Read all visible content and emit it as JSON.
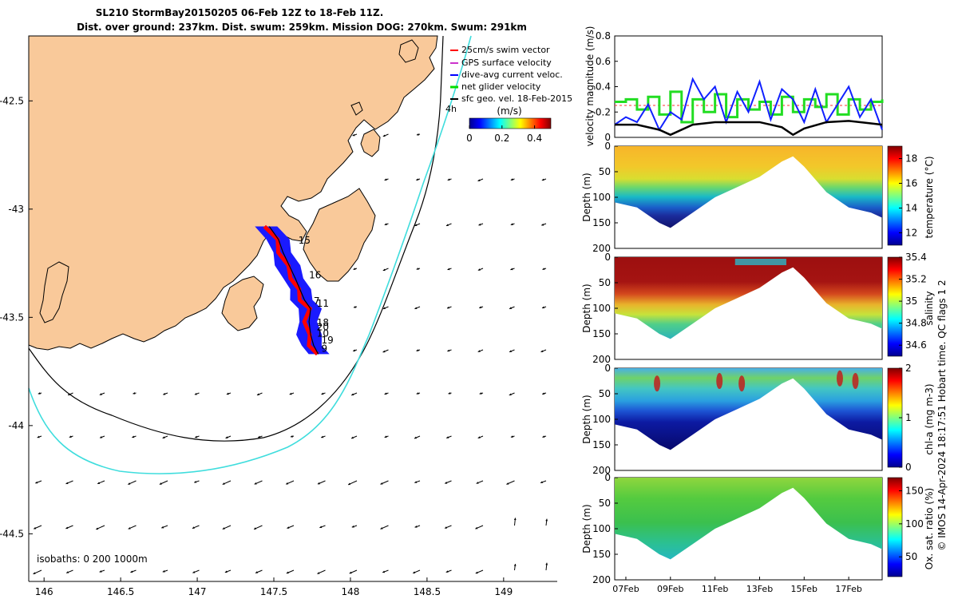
{
  "title": {
    "line1": "SL210 StormBay20150205 06-Feb 12Z to 18-Feb 11Z.",
    "line2": "Dist. over ground: 237km. Dist. swum: 259km. Mission DOG: 270km. Swum: 291km"
  },
  "credit": "© IMOS 14-Apr-2024 18:17:51 Hobart time. QC flags 1  2",
  "colors": {
    "land": "#f9c99a",
    "coast": "#000000",
    "isobath_1000": "#3fdddd",
    "isobath_200": "#000000",
    "swim_vector": "#ff0000",
    "gps_velocity": "#cc33cc",
    "dive_avg": "#0000ff",
    "net_glider": "#00dd00",
    "geo_vel": "#000000"
  },
  "chart_data": [
    {
      "type": "map",
      "x_ticks": [
        "146",
        "146.5",
        "147",
        "147.5",
        "148",
        "148.5",
        "149"
      ],
      "xlim": [
        145.9,
        149.35
      ],
      "y_ticks": [
        "-42.5",
        "-43",
        "-43.5",
        "-44",
        "-44.5"
      ],
      "ylim": [
        -44.72,
        -42.2
      ],
      "isobaths_label": "isobaths: 0   200  1000m",
      "legend": [
        "25cm/s swim vector",
        "GPS surface velocity",
        "dive-avg current veloc.",
        "net glider velocity",
        "sfc geo. vel. 18-Feb-2015"
      ],
      "legend_extra": "4h",
      "colorbar": {
        "label": "(m/s)",
        "ticks": [
          "0",
          "0.2",
          "0.4"
        ],
        "range": [
          0,
          0.5
        ]
      },
      "day_labels": [
        {
          "label": "15",
          "lon": 147.66,
          "lat": -43.16
        },
        {
          "label": "16",
          "lon": 147.73,
          "lat": -43.32
        },
        {
          "label": "11",
          "lon": 147.78,
          "lat": -43.45
        },
        {
          "label": "7",
          "lon": 147.76,
          "lat": -43.44
        },
        {
          "label": "18",
          "lon": 147.78,
          "lat": -43.54
        },
        {
          "label": "20",
          "lon": 147.78,
          "lat": -43.56
        },
        {
          "label": "10",
          "lon": 147.78,
          "lat": -43.59
        },
        {
          "label": "19",
          "lon": 147.81,
          "lat": -43.62
        },
        {
          "label": "9",
          "lon": 147.81,
          "lat": -43.66
        }
      ],
      "glider_track": [
        [
          147.47,
          -43.08
        ],
        [
          147.53,
          -43.14
        ],
        [
          147.56,
          -43.2
        ],
        [
          147.6,
          -43.26
        ],
        [
          147.64,
          -43.32
        ],
        [
          147.67,
          -43.37
        ],
        [
          147.7,
          -43.42
        ],
        [
          147.74,
          -43.46
        ],
        [
          147.73,
          -43.52
        ],
        [
          147.74,
          -43.58
        ],
        [
          147.76,
          -43.63
        ],
        [
          147.79,
          -43.67
        ]
      ]
    },
    {
      "type": "line",
      "ylabel": "velocity magnitude (m/s)",
      "ylim": [
        0,
        0.8
      ],
      "y_ticks": [
        "0",
        "0.2",
        "0.4",
        "0.6",
        "0.8"
      ],
      "x_days": [
        6.5,
        18.5
      ],
      "series": [
        {
          "color": "green",
          "x": [
            6.5,
            7.0,
            7.5,
            8.0,
            8.5,
            9.0,
            9.5,
            10.0,
            10.5,
            11.0,
            11.5,
            12.0,
            12.5,
            13.0,
            13.5,
            14.0,
            14.5,
            15.0,
            15.5,
            16.0,
            16.5,
            17.0,
            17.5,
            18.0,
            18.5
          ],
          "values": [
            0.28,
            0.3,
            0.22,
            0.32,
            0.18,
            0.36,
            0.12,
            0.3,
            0.2,
            0.34,
            0.16,
            0.3,
            0.22,
            0.28,
            0.18,
            0.32,
            0.2,
            0.3,
            0.24,
            0.34,
            0.18,
            0.3,
            0.22,
            0.28,
            0.3
          ]
        },
        {
          "color": "blue",
          "x": [
            6.5,
            7.0,
            7.5,
            8.0,
            8.5,
            9.0,
            9.5,
            10.0,
            10.5,
            11.0,
            11.5,
            12.0,
            12.5,
            13.0,
            13.5,
            14.0,
            14.5,
            15.0,
            15.5,
            16.0,
            16.5,
            17.0,
            17.5,
            18.0,
            18.5
          ],
          "values": [
            0.1,
            0.16,
            0.12,
            0.26,
            0.06,
            0.2,
            0.14,
            0.46,
            0.3,
            0.4,
            0.12,
            0.36,
            0.2,
            0.44,
            0.14,
            0.38,
            0.3,
            0.12,
            0.38,
            0.12,
            0.26,
            0.4,
            0.16,
            0.3,
            0.06
          ]
        },
        {
          "color": "black",
          "x": [
            6.5,
            7.5,
            8.5,
            9.0,
            10.0,
            11.0,
            12.0,
            13.0,
            14.0,
            14.5,
            15.0,
            16.0,
            17.0,
            18.0,
            18.5
          ],
          "values": [
            0.1,
            0.1,
            0.06,
            0.02,
            0.1,
            0.12,
            0.12,
            0.12,
            0.08,
            0.02,
            0.07,
            0.12,
            0.13,
            0.11,
            0.1
          ]
        }
      ]
    },
    {
      "type": "heatmap",
      "variable": "temperature",
      "ylabel": "Depth (m)",
      "clabel": "temperature (°C)",
      "y_ticks": [
        "0",
        "50",
        "100",
        "150",
        "200"
      ],
      "c_ticks": [
        "12",
        "14",
        "16",
        "18"
      ],
      "crange": [
        11,
        19
      ],
      "bottom_profile": [
        [
          6.5,
          110
        ],
        [
          7.5,
          120
        ],
        [
          8.5,
          150
        ],
        [
          9.0,
          160
        ],
        [
          10.0,
          130
        ],
        [
          11.0,
          100
        ],
        [
          12.0,
          80
        ],
        [
          13.0,
          60
        ],
        [
          14.0,
          30
        ],
        [
          14.5,
          20
        ],
        [
          15.0,
          40
        ],
        [
          16.0,
          90
        ],
        [
          17.0,
          120
        ],
        [
          18.0,
          130
        ],
        [
          18.5,
          140
        ]
      ]
    },
    {
      "type": "heatmap",
      "variable": "salinity",
      "ylabel": "Depth (m)",
      "clabel": "salinity",
      "y_ticks": [
        "0",
        "50",
        "100",
        "150",
        "200"
      ],
      "c_ticks": [
        "34.6",
        "34.8",
        "35",
        "35.2",
        "35.4"
      ],
      "crange": [
        34.5,
        35.4
      ]
    },
    {
      "type": "heatmap",
      "variable": "chlorophyll",
      "ylabel": "Depth (m)",
      "clabel": "chl-a (mg m-3)",
      "y_ticks": [
        "0",
        "50",
        "100",
        "150",
        "200"
      ],
      "c_ticks": [
        "0",
        "1",
        "2"
      ],
      "crange": [
        0,
        2
      ]
    },
    {
      "type": "heatmap",
      "variable": "oxygen",
      "ylabel": "Depth (m)",
      "clabel": "Ox. sat. ratio (%)",
      "y_ticks": [
        "0",
        "50",
        "100",
        "150",
        "200"
      ],
      "c_ticks": [
        "50",
        "100",
        "150"
      ],
      "crange": [
        20,
        170
      ],
      "x_ticks": [
        "07Feb",
        "09Feb",
        "11Feb",
        "13Feb",
        "15Feb",
        "17Feb"
      ]
    }
  ]
}
